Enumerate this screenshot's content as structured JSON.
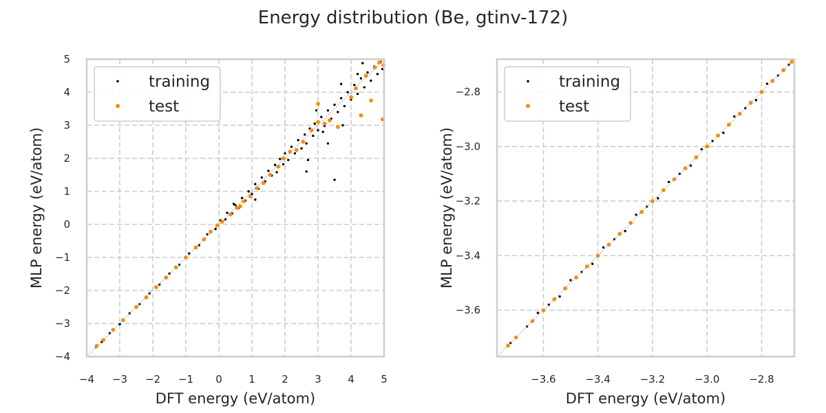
{
  "figure": {
    "suptitle": "Energy distribution (Be, gtinv-172)"
  },
  "colors": {
    "training": "#000000",
    "test": "#ff8c00",
    "grid": "#cccccc",
    "spine": "#cccccc",
    "diagonal": "#9a9a9a"
  },
  "chart_data": [
    {
      "type": "scatter",
      "panel": "left",
      "xlabel": "DFT energy (eV/atom)",
      "ylabel": "MLP energy (eV/atom)",
      "xlim": [
        -4,
        5
      ],
      "ylim": [
        -4,
        5
      ],
      "xticks": [
        -4,
        -3,
        -2,
        -1,
        0,
        1,
        2,
        3,
        4,
        5
      ],
      "yticks": [
        -4,
        -3,
        -2,
        -1,
        0,
        1,
        2,
        3,
        4,
        5
      ],
      "xtick_labels": [
        "−4",
        "−3",
        "−2",
        "−1",
        "0",
        "1",
        "2",
        "3",
        "4",
        "5"
      ],
      "ytick_labels": [
        "−4",
        "−3",
        "−2",
        "−1",
        "0",
        "1",
        "2",
        "3",
        "4",
        "5"
      ],
      "grid": true,
      "legend_position": "top-left",
      "series": [
        {
          "name": "training",
          "color": "#000000",
          "points": [
            [
              -3.72,
              -3.71
            ],
            [
              -3.55,
              -3.56
            ],
            [
              -3.3,
              -3.29
            ],
            [
              -3.0,
              -3.02
            ],
            [
              -2.7,
              -2.69
            ],
            [
              -2.4,
              -2.41
            ],
            [
              -2.1,
              -2.09
            ],
            [
              -1.8,
              -1.82
            ],
            [
              -1.5,
              -1.49
            ],
            [
              -1.2,
              -1.22
            ],
            [
              -0.9,
              -0.88
            ],
            [
              -0.6,
              -0.63
            ],
            [
              -0.35,
              -0.3
            ],
            [
              -0.1,
              -0.14
            ],
            [
              0.05,
              0.12
            ],
            [
              0.2,
              0.15
            ],
            [
              0.25,
              0.35
            ],
            [
              0.4,
              0.33
            ],
            [
              0.5,
              0.58
            ],
            [
              0.6,
              0.5
            ],
            [
              0.7,
              0.8
            ],
            [
              0.8,
              0.72
            ],
            [
              0.9,
              1.0
            ],
            [
              1.0,
              0.92
            ],
            [
              1.1,
              1.22
            ],
            [
              1.2,
              1.08
            ],
            [
              1.3,
              1.42
            ],
            [
              1.4,
              1.3
            ],
            [
              1.5,
              1.62
            ],
            [
              1.6,
              1.48
            ],
            [
              1.7,
              1.8
            ],
            [
              1.75,
              1.58
            ],
            [
              1.85,
              1.98
            ],
            [
              1.95,
              1.82
            ],
            [
              2.0,
              2.15
            ],
            [
              2.1,
              1.95
            ],
            [
              2.2,
              2.35
            ],
            [
              2.3,
              2.15
            ],
            [
              2.4,
              2.55
            ],
            [
              2.5,
              2.3
            ],
            [
              2.6,
              2.72
            ],
            [
              2.65,
              2.45
            ],
            [
              2.75,
              2.9
            ],
            [
              2.85,
              2.68
            ],
            [
              2.9,
              3.05
            ],
            [
              3.0,
              2.85
            ],
            [
              3.1,
              3.25
            ],
            [
              3.2,
              2.98
            ],
            [
              3.3,
              3.45
            ],
            [
              3.4,
              3.2
            ],
            [
              3.5,
              3.62
            ],
            [
              3.6,
              3.4
            ],
            [
              3.7,
              3.82
            ],
            [
              3.8,
              3.58
            ],
            [
              3.9,
              4.0
            ],
            [
              4.0,
              3.78
            ],
            [
              4.1,
              4.22
            ],
            [
              4.2,
              3.95
            ],
            [
              4.3,
              4.42
            ],
            [
              4.4,
              4.15
            ],
            [
              4.5,
              4.6
            ],
            [
              4.6,
              4.35
            ],
            [
              4.7,
              4.78
            ],
            [
              4.8,
              4.55
            ],
            [
              4.9,
              4.92
            ],
            [
              4.95,
              4.7
            ],
            [
              3.3,
              2.45
            ],
            [
              2.7,
              1.95
            ],
            [
              3.5,
              1.35
            ],
            [
              2.65,
              1.6
            ],
            [
              3.15,
              2.8
            ],
            [
              3.75,
              3.0
            ],
            [
              4.2,
              4.55
            ],
            [
              4.35,
              4.88
            ],
            [
              2.95,
              3.45
            ],
            [
              3.7,
              4.25
            ],
            [
              1.1,
              0.75
            ],
            [
              0.45,
              0.62
            ]
          ]
        },
        {
          "name": "test",
          "color": "#ff8c00",
          "points": [
            [
              -3.7,
              -3.68
            ],
            [
              -3.5,
              -3.5
            ],
            [
              -3.2,
              -3.19
            ],
            [
              -2.9,
              -2.9
            ],
            [
              -2.5,
              -2.5
            ],
            [
              -2.2,
              -2.21
            ],
            [
              -1.9,
              -1.9
            ],
            [
              -1.6,
              -1.61
            ],
            [
              -1.3,
              -1.3
            ],
            [
              -1.0,
              -1.0
            ],
            [
              -0.7,
              -0.7
            ],
            [
              -0.45,
              -0.45
            ],
            [
              -0.25,
              -0.22
            ],
            [
              -0.05,
              -0.03
            ],
            [
              0.1,
              0.08
            ],
            [
              0.35,
              0.3
            ],
            [
              0.55,
              0.5
            ],
            [
              0.65,
              0.55
            ],
            [
              0.75,
              0.7
            ],
            [
              0.95,
              0.85
            ],
            [
              1.15,
              1.1
            ],
            [
              1.35,
              1.25
            ],
            [
              1.55,
              1.5
            ],
            [
              1.8,
              1.75
            ],
            [
              1.95,
              2.0
            ],
            [
              2.15,
              2.2
            ],
            [
              2.35,
              2.25
            ],
            [
              2.55,
              2.5
            ],
            [
              2.8,
              2.85
            ],
            [
              3.0,
              3.1
            ],
            [
              3.2,
              3.05
            ],
            [
              3.35,
              3.15
            ],
            [
              3.0,
              3.65
            ],
            [
              3.6,
              2.95
            ],
            [
              4.0,
              3.85
            ],
            [
              4.15,
              4.12
            ],
            [
              4.3,
              3.3
            ],
            [
              4.45,
              4.5
            ],
            [
              4.6,
              3.75
            ],
            [
              4.72,
              4.75
            ],
            [
              4.85,
              4.9
            ],
            [
              4.95,
              3.18
            ],
            [
              4.98,
              4.82
            ]
          ]
        },
        {
          "name": "",
          "type": "diagonal",
          "points": [
            [
              -4,
              -4
            ],
            [
              5,
              5
            ]
          ]
        }
      ]
    },
    {
      "type": "scatter",
      "panel": "right",
      "xlabel": "DFT energy (eV/atom)",
      "ylabel": "MLP energy (eV/atom)",
      "xlim": [
        -3.77,
        -2.68
      ],
      "ylim": [
        -3.77,
        -2.68
      ],
      "xticks": [
        -3.6,
        -3.4,
        -3.2,
        -3.0,
        -2.8
      ],
      "yticks": [
        -3.6,
        -3.4,
        -3.2,
        -3.0,
        -2.8
      ],
      "xtick_labels": [
        "−3.6",
        "−3.4",
        "−3.2",
        "−3.0",
        "−2.8"
      ],
      "ytick_labels": [
        "−3.6",
        "−3.4",
        "−3.2",
        "−3.0",
        "−2.8"
      ],
      "grid": true,
      "legend_position": "top-left",
      "series": [
        {
          "name": "training",
          "color": "#000000",
          "points": [
            [
              -3.72,
              -3.72
            ],
            [
              -3.66,
              -3.66
            ],
            [
              -3.62,
              -3.61
            ],
            [
              -3.58,
              -3.58
            ],
            [
              -3.54,
              -3.55
            ],
            [
              -3.5,
              -3.49
            ],
            [
              -3.46,
              -3.46
            ],
            [
              -3.42,
              -3.43
            ],
            [
              -3.38,
              -3.37
            ],
            [
              -3.34,
              -3.34
            ],
            [
              -3.3,
              -3.31
            ],
            [
              -3.26,
              -3.25
            ],
            [
              -3.22,
              -3.22
            ],
            [
              -3.18,
              -3.19
            ],
            [
              -3.14,
              -3.13
            ],
            [
              -3.1,
              -3.1
            ],
            [
              -3.06,
              -3.07
            ],
            [
              -3.02,
              -3.01
            ],
            [
              -2.98,
              -2.98
            ],
            [
              -2.94,
              -2.95
            ],
            [
              -2.9,
              -2.89
            ],
            [
              -2.86,
              -2.86
            ],
            [
              -2.82,
              -2.83
            ],
            [
              -2.78,
              -2.77
            ],
            [
              -2.74,
              -2.74
            ],
            [
              -2.7,
              -2.7
            ]
          ]
        },
        {
          "name": "test",
          "color": "#ff8c00",
          "points": [
            [
              -3.73,
              -3.73
            ],
            [
              -3.7,
              -3.7
            ],
            [
              -3.64,
              -3.64
            ],
            [
              -3.6,
              -3.6
            ],
            [
              -3.56,
              -3.56
            ],
            [
              -3.52,
              -3.52
            ],
            [
              -3.48,
              -3.48
            ],
            [
              -3.44,
              -3.44
            ],
            [
              -3.4,
              -3.4
            ],
            [
              -3.36,
              -3.36
            ],
            [
              -3.32,
              -3.32
            ],
            [
              -3.28,
              -3.28
            ],
            [
              -3.24,
              -3.24
            ],
            [
              -3.2,
              -3.2
            ],
            [
              -3.16,
              -3.16
            ],
            [
              -3.12,
              -3.12
            ],
            [
              -3.08,
              -3.08
            ],
            [
              -3.04,
              -3.04
            ],
            [
              -3.0,
              -3.0
            ],
            [
              -2.96,
              -2.96
            ],
            [
              -2.92,
              -2.92
            ],
            [
              -2.88,
              -2.88
            ],
            [
              -2.84,
              -2.84
            ],
            [
              -2.8,
              -2.8
            ],
            [
              -2.76,
              -2.76
            ],
            [
              -2.72,
              -2.72
            ],
            [
              -2.69,
              -2.69
            ]
          ]
        },
        {
          "name": "",
          "type": "diagonal",
          "points": [
            [
              -3.77,
              -3.77
            ],
            [
              -2.68,
              -2.68
            ]
          ]
        }
      ]
    }
  ]
}
